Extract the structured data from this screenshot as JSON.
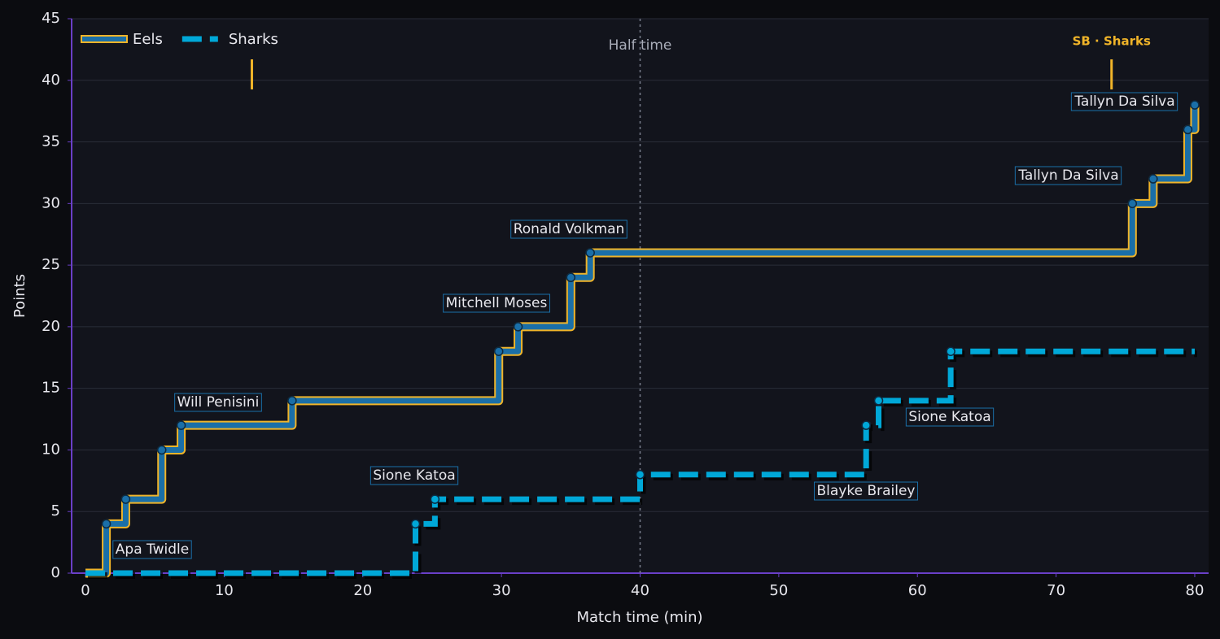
{
  "chart_data": {
    "type": "step",
    "xlabel": "Match time (min)",
    "ylabel": "Points",
    "xlim": [
      -1,
      81
    ],
    "ylim": [
      0,
      45
    ],
    "xticks": [
      0,
      10,
      20,
      30,
      40,
      50,
      60,
      70,
      80
    ],
    "yticks": [
      0,
      5,
      10,
      15,
      20,
      25,
      30,
      35,
      40,
      45
    ],
    "grid": true,
    "legend": "upper left",
    "series": [
      {
        "name": "Eels",
        "color": "#1a6fa8",
        "edge_color": "#f0b429",
        "x": [
          0,
          1.5,
          2.9,
          5.5,
          6.9,
          14.9,
          29.8,
          31.2,
          35,
          36.4,
          75.5,
          77,
          79.5,
          80
        ],
        "values": [
          0,
          4,
          6,
          10,
          12,
          14,
          18,
          20,
          24,
          26,
          30,
          32,
          36,
          38
        ]
      },
      {
        "name": "Sharks",
        "color": "#00a8d8",
        "dashed": true,
        "x": [
          0,
          23.8,
          25.2,
          40,
          56.3,
          57.2,
          62.4,
          80
        ],
        "values": [
          0,
          4,
          6,
          8,
          12,
          14,
          18,
          18
        ]
      }
    ],
    "vlines": [
      {
        "x": 40,
        "label": "Half time"
      }
    ],
    "sin_bins": [
      {
        "x": 12
      },
      {
        "x": 74,
        "label": "SB · Sharks"
      }
    ],
    "annotations": [
      "Apa Twidle",
      "Will Penisini",
      "Sione Katoa",
      "Mitchell Moses",
      "Ronald Volkman",
      "Blayke Brailey",
      "Sione Katoa",
      "Tallyn Da Silva",
      "Tallyn Da Silva"
    ]
  }
}
